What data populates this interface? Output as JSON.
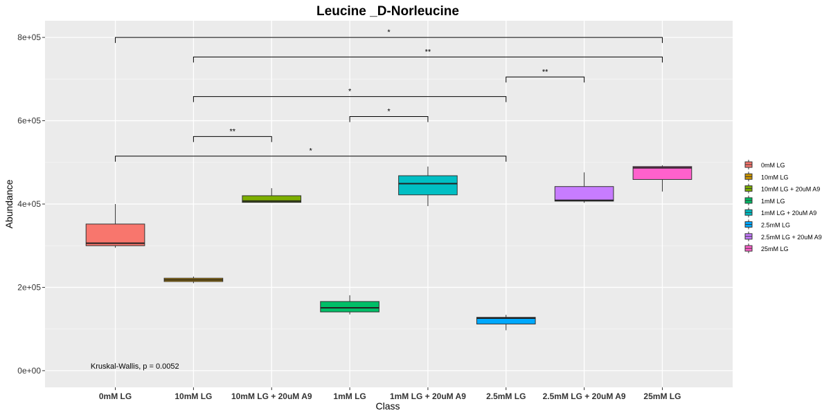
{
  "chart_data": {
    "type": "box",
    "title": "Leucine _D-Norleucine",
    "xlabel": "Class",
    "ylabel": "Abundance",
    "categories": [
      "0mM LG",
      "10mM LG",
      "10mM LG + 20uM A9",
      "1mM LG",
      "1mM LG + 20uM A9",
      "2.5mM LG",
      "2.5mM LG + 20uM A9",
      "25mM LG"
    ],
    "ylim": [
      -40000,
      840000
    ],
    "yticks": [
      0,
      200000,
      400000,
      600000,
      800000
    ],
    "ytick_labels": [
      "0e+00",
      "2e+05",
      "4e+05",
      "6e+05",
      "8e+05"
    ],
    "grid": true,
    "legend_position": "right",
    "boxes": [
      {
        "name": "0mM LG",
        "color": "#F8766D",
        "min": 295000,
        "q1": 300000,
        "median": 306000,
        "q3": 352000,
        "max": 400000
      },
      {
        "name": "10mM LG",
        "color": "#CD9600",
        "min": 210000,
        "q1": 214000,
        "median": 218000,
        "q3": 222000,
        "max": 226000
      },
      {
        "name": "10mM LG + 20uM A9",
        "color": "#7CAE00",
        "min": 403000,
        "q1": 404000,
        "median": 407000,
        "q3": 420000,
        "max": 438000
      },
      {
        "name": "1mM LG",
        "color": "#00BE67",
        "min": 135000,
        "q1": 141000,
        "median": 151000,
        "q3": 166000,
        "max": 181000
      },
      {
        "name": "1mM LG + 20uM A9",
        "color": "#00BFC4",
        "min": 395000,
        "q1": 422000,
        "median": 449000,
        "q3": 468000,
        "max": 490000
      },
      {
        "name": "2.5mM LG",
        "color": "#00A9FF",
        "min": 97000,
        "q1": 112000,
        "median": 126000,
        "q3": 128000,
        "max": 134000
      },
      {
        "name": "2.5mM LG + 20uM A9",
        "color": "#C77CFF",
        "min": 403000,
        "q1": 407000,
        "median": 409000,
        "q3": 442000,
        "max": 476000
      },
      {
        "name": "25mM LG",
        "color": "#FF61CC",
        "min": 430000,
        "q1": 459000,
        "median": 487000,
        "q3": 490000,
        "max": 493000
      }
    ],
    "comparisons": [
      {
        "from": 0,
        "to": 7,
        "y": 800000,
        "label": "*"
      },
      {
        "from": 1,
        "to": 7,
        "y": 753000,
        "label": "**"
      },
      {
        "from": 5,
        "to": 6,
        "y": 705000,
        "label": "**"
      },
      {
        "from": 1,
        "to": 5,
        "y": 658000,
        "label": "*"
      },
      {
        "from": 3,
        "to": 4,
        "y": 610000,
        "label": "*"
      },
      {
        "from": 1,
        "to": 2,
        "y": 562000,
        "label": "**"
      },
      {
        "from": 0,
        "to": 5,
        "y": 515000,
        "label": "*"
      }
    ],
    "annotation": {
      "text": "Kruskal-Wallis, p = 0.0052",
      "x": 0.25,
      "y": 5000
    }
  }
}
